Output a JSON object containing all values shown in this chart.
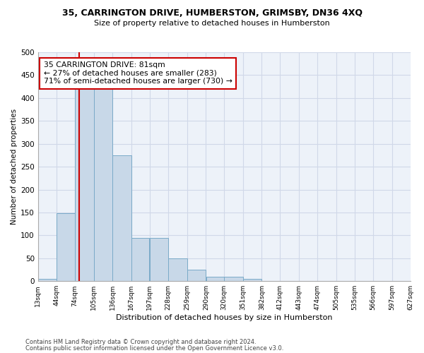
{
  "title1": "35, CARRINGTON DRIVE, HUMBERSTON, GRIMSBY, DN36 4XQ",
  "title2": "Size of property relative to detached houses in Humberston",
  "xlabel": "Distribution of detached houses by size in Humberston",
  "ylabel": "Number of detached properties",
  "footnote1": "Contains HM Land Registry data © Crown copyright and database right 2024.",
  "footnote2": "Contains public sector information licensed under the Open Government Licence v3.0.",
  "annotation_line1": "35 CARRINGTON DRIVE: 81sqm",
  "annotation_line2": "← 27% of detached houses are smaller (283)",
  "annotation_line3": "71% of semi-detached houses are larger (730) →",
  "bar_left_edges": [
    13,
    44,
    74,
    105,
    136,
    167,
    197,
    228,
    259,
    290,
    320,
    351,
    382,
    412,
    443,
    474,
    505,
    535,
    566,
    597
  ],
  "bar_widths": [
    31,
    30,
    31,
    31,
    31,
    30,
    31,
    31,
    31,
    30,
    31,
    31,
    30,
    31,
    31,
    31,
    30,
    31,
    31,
    30
  ],
  "bar_heights": [
    5,
    148,
    460,
    460,
    275,
    95,
    95,
    50,
    25,
    10,
    10,
    5,
    0,
    0,
    0,
    0,
    0,
    0,
    0,
    0
  ],
  "bar_color": "#c8d8e8",
  "bar_edge_color": "#7aaac8",
  "red_line_x": 81,
  "ylim": [
    0,
    500
  ],
  "yticks": [
    0,
    50,
    100,
    150,
    200,
    250,
    300,
    350,
    400,
    450,
    500
  ],
  "tick_labels": [
    "13sqm",
    "44sqm",
    "74sqm",
    "105sqm",
    "136sqm",
    "167sqm",
    "197sqm",
    "228sqm",
    "259sqm",
    "290sqm",
    "320sqm",
    "351sqm",
    "382sqm",
    "412sqm",
    "443sqm",
    "474sqm",
    "505sqm",
    "535sqm",
    "566sqm",
    "597sqm",
    "627sqm"
  ],
  "grid_color": "#d0d8e8",
  "background_color": "#edf2f9",
  "box_color": "#cc0000"
}
